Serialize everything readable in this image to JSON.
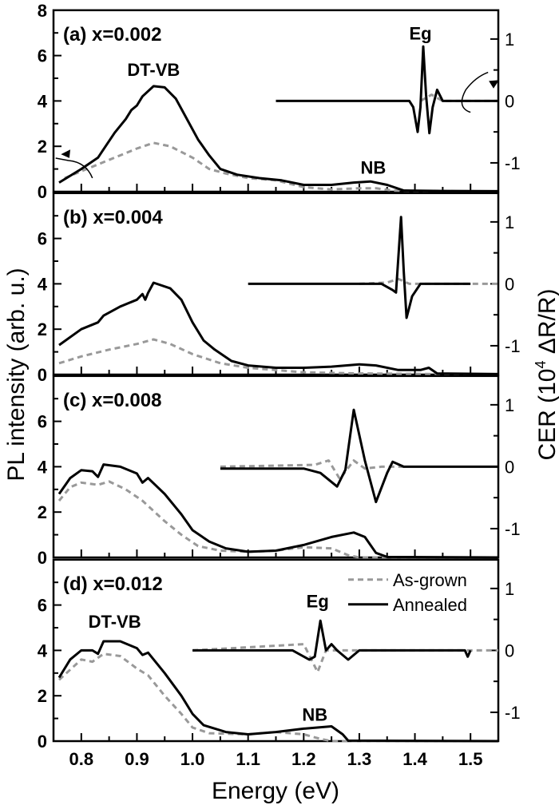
{
  "chart_data": {
    "type": "line",
    "xlabel": "Energy (eV)",
    "ylabel_left": "PL intensity (arb. u.)",
    "ylabel_right": "CER (10^4 ΔR/R)",
    "ylabel_right_parts": {
      "pre": "CER (10",
      "sup": "4",
      "post": " ΔR/R)"
    },
    "xlim": [
      0.75,
      1.55
    ],
    "xticks": [
      "0.8",
      "0.9",
      "1.0",
      "1.1",
      "1.2",
      "1.3",
      "1.4",
      "1.5"
    ],
    "ylim_left": [
      0,
      8
    ],
    "yticks_left": [
      "0",
      "2",
      "4",
      "6",
      "8"
    ],
    "yticks_right": [
      "-1",
      "0",
      "1"
    ],
    "legend": {
      "placement": "top-right of panel (d)",
      "entries": [
        {
          "label": "As-grown",
          "style": "dashed",
          "color": "#999999"
        },
        {
          "label": "Annealed",
          "style": "solid",
          "color": "#000000"
        }
      ]
    },
    "colors": {
      "annealed": "#000000",
      "as_grown": "#999999"
    },
    "panels": [
      {
        "label": "(a) x=0.002",
        "annotations": [
          "DT-VB",
          "NB",
          "Eg"
        ],
        "pl_annealed": [
          [
            0.76,
            0.4
          ],
          [
            0.8,
            1.0
          ],
          [
            0.83,
            1.5
          ],
          [
            0.86,
            2.6
          ],
          [
            0.88,
            3.2
          ],
          [
            0.89,
            3.6
          ],
          [
            0.9,
            3.8
          ],
          [
            0.91,
            4.2
          ],
          [
            0.93,
            4.65
          ],
          [
            0.95,
            4.6
          ],
          [
            0.97,
            4.1
          ],
          [
            0.99,
            3.2
          ],
          [
            1.01,
            2.3
          ],
          [
            1.03,
            1.6
          ],
          [
            1.05,
            1.0
          ],
          [
            1.08,
            0.75
          ],
          [
            1.12,
            0.6
          ],
          [
            1.16,
            0.5
          ],
          [
            1.2,
            0.3
          ],
          [
            1.25,
            0.3
          ],
          [
            1.29,
            0.4
          ],
          [
            1.32,
            0.45
          ],
          [
            1.35,
            0.3
          ],
          [
            1.38,
            0.05
          ],
          [
            1.45,
            0.03
          ],
          [
            1.55,
            0.02
          ]
        ],
        "pl_as_grown": [
          [
            0.77,
            0.6
          ],
          [
            0.8,
            0.9
          ],
          [
            0.85,
            1.4
          ],
          [
            0.9,
            1.9
          ],
          [
            0.93,
            2.15
          ],
          [
            0.96,
            2.0
          ],
          [
            1.0,
            1.5
          ],
          [
            1.03,
            1.0
          ],
          [
            1.06,
            0.8
          ],
          [
            1.1,
            0.6
          ],
          [
            1.15,
            0.5
          ],
          [
            1.2,
            0.2
          ],
          [
            1.25,
            0.1
          ],
          [
            1.3,
            0.15
          ],
          [
            1.33,
            0.15
          ],
          [
            1.36,
            0.05
          ],
          [
            1.55,
            0
          ]
        ],
        "cer_annealed": [
          [
            1.15,
            0
          ],
          [
            1.39,
            0
          ],
          [
            1.397,
            -0.1
          ],
          [
            1.405,
            -0.5
          ],
          [
            1.41,
            -0.1
          ],
          [
            1.415,
            0.88
          ],
          [
            1.42,
            0.1
          ],
          [
            1.426,
            -0.52
          ],
          [
            1.432,
            -0.1
          ],
          [
            1.44,
            0.18
          ],
          [
            1.45,
            0
          ],
          [
            1.55,
            0
          ]
        ],
        "cer_as_grown": [
          [
            1.41,
            0
          ],
          [
            1.42,
            0.05
          ],
          [
            1.43,
            0.1
          ],
          [
            1.45,
            0
          ],
          [
            1.55,
            0
          ]
        ]
      },
      {
        "label": "(b) x=0.004",
        "annotations": [],
        "pl_annealed": [
          [
            0.76,
            1.3
          ],
          [
            0.8,
            2.0
          ],
          [
            0.83,
            2.3
          ],
          [
            0.84,
            2.6
          ],
          [
            0.87,
            3.0
          ],
          [
            0.9,
            3.3
          ],
          [
            0.91,
            3.55
          ],
          [
            0.915,
            3.3
          ],
          [
            0.92,
            3.6
          ],
          [
            0.93,
            4.05
          ],
          [
            0.96,
            3.8
          ],
          [
            0.98,
            3.3
          ],
          [
            1.0,
            2.3
          ],
          [
            1.02,
            1.5
          ],
          [
            1.04,
            1.1
          ],
          [
            1.07,
            0.6
          ],
          [
            1.1,
            0.4
          ],
          [
            1.15,
            0.3
          ],
          [
            1.2,
            0.3
          ],
          [
            1.25,
            0.35
          ],
          [
            1.3,
            0.45
          ],
          [
            1.33,
            0.4
          ],
          [
            1.37,
            0.2
          ],
          [
            1.41,
            0.2
          ],
          [
            1.425,
            0.3
          ],
          [
            1.44,
            0.05
          ],
          [
            1.55,
            0.02
          ]
        ],
        "pl_as_grown": [
          [
            0.76,
            0.5
          ],
          [
            0.8,
            0.8
          ],
          [
            0.85,
            1.1
          ],
          [
            0.9,
            1.35
          ],
          [
            0.93,
            1.55
          ],
          [
            0.96,
            1.35
          ],
          [
            1.0,
            0.9
          ],
          [
            1.05,
            0.5
          ],
          [
            1.1,
            0.3
          ],
          [
            1.2,
            0.1
          ],
          [
            1.3,
            0.05
          ],
          [
            1.55,
            0
          ]
        ],
        "cer_annealed": [
          [
            1.1,
            0
          ],
          [
            1.34,
            0
          ],
          [
            1.36,
            -0.1
          ],
          [
            1.366,
            -0.14
          ],
          [
            1.375,
            1.08
          ],
          [
            1.38,
            0.2
          ],
          [
            1.385,
            -0.55
          ],
          [
            1.395,
            -0.2
          ],
          [
            1.41,
            0
          ],
          [
            1.5,
            0
          ]
        ],
        "cer_as_grown": [
          [
            1.3,
            0
          ],
          [
            1.35,
            0.02
          ],
          [
            1.37,
            0.08
          ],
          [
            1.39,
            0
          ],
          [
            1.55,
            0
          ]
        ]
      },
      {
        "label": "(c) x=0.008",
        "annotations": [],
        "pl_annealed": [
          [
            0.76,
            2.8
          ],
          [
            0.78,
            3.5
          ],
          [
            0.8,
            3.85
          ],
          [
            0.82,
            3.8
          ],
          [
            0.83,
            3.55
          ],
          [
            0.84,
            4.1
          ],
          [
            0.87,
            4.0
          ],
          [
            0.9,
            3.7
          ],
          [
            0.91,
            3.3
          ],
          [
            0.92,
            3.5
          ],
          [
            0.95,
            2.8
          ],
          [
            0.98,
            1.9
          ],
          [
            1.0,
            1.2
          ],
          [
            1.03,
            0.7
          ],
          [
            1.06,
            0.4
          ],
          [
            1.1,
            0.25
          ],
          [
            1.15,
            0.3
          ],
          [
            1.2,
            0.55
          ],
          [
            1.25,
            0.9
          ],
          [
            1.29,
            1.1
          ],
          [
            1.31,
            0.9
          ],
          [
            1.33,
            0.2
          ],
          [
            1.35,
            0.02
          ],
          [
            1.55,
            0
          ]
        ],
        "pl_as_grown": [
          [
            0.76,
            2.5
          ],
          [
            0.78,
            3.1
          ],
          [
            0.8,
            3.3
          ],
          [
            0.83,
            3.2
          ],
          [
            0.85,
            3.35
          ],
          [
            0.88,
            3.0
          ],
          [
            0.91,
            2.5
          ],
          [
            0.95,
            1.6
          ],
          [
            0.98,
            1.0
          ],
          [
            1.01,
            0.5
          ],
          [
            1.05,
            0.3
          ],
          [
            1.1,
            0.25
          ],
          [
            1.15,
            0.3
          ],
          [
            1.2,
            0.45
          ],
          [
            1.25,
            0.4
          ],
          [
            1.28,
            0.1
          ],
          [
            1.3,
            0
          ],
          [
            1.55,
            0
          ]
        ],
        "cer_annealed": [
          [
            1.05,
            -0.03
          ],
          [
            1.2,
            -0.03
          ],
          [
            1.23,
            -0.1
          ],
          [
            1.26,
            -0.32
          ],
          [
            1.275,
            -0.05
          ],
          [
            1.29,
            0.92
          ],
          [
            1.31,
            0.1
          ],
          [
            1.33,
            -0.57
          ],
          [
            1.35,
            -0.1
          ],
          [
            1.36,
            0.08
          ],
          [
            1.38,
            0
          ],
          [
            1.55,
            0
          ]
        ],
        "cer_as_grown": [
          [
            1.05,
            0
          ],
          [
            1.22,
            0.03
          ],
          [
            1.245,
            0.1
          ],
          [
            1.265,
            -0.2
          ],
          [
            1.29,
            0.1
          ],
          [
            1.31,
            -0.03
          ],
          [
            1.34,
            0
          ],
          [
            1.38,
            0
          ]
        ]
      },
      {
        "label": "(d) x=0.012",
        "annotations": [
          "DT-VB",
          "NB",
          "Eg"
        ],
        "pl_annealed": [
          [
            0.76,
            2.8
          ],
          [
            0.78,
            3.6
          ],
          [
            0.8,
            4.0
          ],
          [
            0.82,
            4.0
          ],
          [
            0.83,
            3.85
          ],
          [
            0.84,
            4.4
          ],
          [
            0.87,
            4.4
          ],
          [
            0.9,
            4.1
          ],
          [
            0.91,
            3.8
          ],
          [
            0.92,
            3.9
          ],
          [
            0.95,
            3.0
          ],
          [
            0.98,
            2.0
          ],
          [
            1.0,
            1.2
          ],
          [
            1.02,
            0.7
          ],
          [
            1.06,
            0.4
          ],
          [
            1.1,
            0.3
          ],
          [
            1.15,
            0.4
          ],
          [
            1.2,
            0.55
          ],
          [
            1.25,
            0.65
          ],
          [
            1.27,
            0.3
          ],
          [
            1.28,
            0.02
          ],
          [
            1.55,
            0
          ]
        ],
        "pl_as_grown": [
          [
            0.76,
            2.7
          ],
          [
            0.8,
            3.6
          ],
          [
            0.82,
            3.5
          ],
          [
            0.84,
            3.85
          ],
          [
            0.87,
            3.75
          ],
          [
            0.9,
            3.2
          ],
          [
            0.92,
            2.9
          ],
          [
            0.95,
            2.0
          ],
          [
            0.98,
            1.2
          ],
          [
            1.0,
            0.6
          ],
          [
            1.03,
            0.35
          ],
          [
            1.1,
            0.3
          ],
          [
            1.15,
            0.4
          ],
          [
            1.2,
            0.3
          ],
          [
            1.23,
            0.1
          ],
          [
            1.25,
            0
          ],
          [
            1.55,
            0
          ]
        ],
        "cer_annealed": [
          [
            1.0,
            0
          ],
          [
            1.18,
            0
          ],
          [
            1.21,
            -0.15
          ],
          [
            1.22,
            -0.1
          ],
          [
            1.23,
            0.48
          ],
          [
            1.24,
            0.0
          ],
          [
            1.25,
            0.1
          ],
          [
            1.26,
            0
          ],
          [
            1.28,
            -0.15
          ],
          [
            1.3,
            0
          ],
          [
            1.49,
            0
          ],
          [
            1.495,
            -0.1
          ],
          [
            1.5,
            0
          ]
        ],
        "cer_as_grown": [
          [
            1.0,
            0
          ],
          [
            1.2,
            0.1
          ],
          [
            1.225,
            -0.35
          ],
          [
            1.24,
            0
          ],
          [
            1.55,
            0
          ]
        ]
      }
    ]
  }
}
